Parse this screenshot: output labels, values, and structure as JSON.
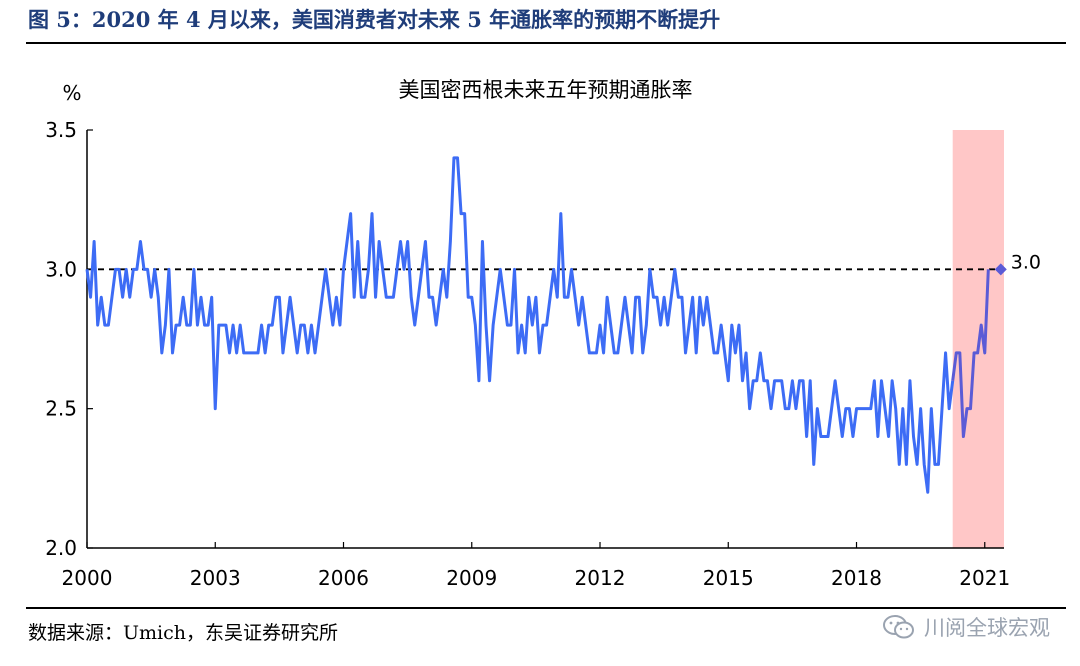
{
  "figure_title": "图 5：2020 年 4 月以来，美国消费者对未来 5 年通胀率的预期不断提升",
  "source": "数据来源：Umich，东吴证券研究所",
  "watermark": "川阅全球宏观",
  "watermark_icon": "wechat-icon",
  "colors": {
    "title": "#1f3d7a",
    "line": "#3d6cf5",
    "highlight": "#ffc7c7",
    "endpoint": "#5b5bd6",
    "reference": "#000000"
  },
  "chart_data": {
    "type": "line",
    "title": "美国密西根未来五年预期通胀率",
    "ylabel": "%",
    "xlabel": "",
    "ylim": [
      2.0,
      3.5
    ],
    "yticks": [
      "2.0",
      "2.5",
      "3.0",
      "3.5"
    ],
    "xticks": [
      "2000",
      "2003",
      "2006",
      "2009",
      "2012",
      "2015",
      "2018",
      "2021"
    ],
    "xlim": [
      2000.0,
      2021.45
    ],
    "reference_line": {
      "y": 3.0,
      "style": "dashed"
    },
    "highlight_region": {
      "x_start": 2020.25,
      "x_end": 2021.45
    },
    "endpoint_label": {
      "x": 2021.375,
      "y": 3.0,
      "text": "3.0"
    },
    "grid": false,
    "legend": "none",
    "series": [
      {
        "name": "",
        "x_start": 2000.0,
        "x_step_months": 1,
        "values": [
          3.0,
          2.9,
          3.1,
          2.8,
          2.9,
          2.8,
          2.8,
          2.9,
          3.0,
          3.0,
          2.9,
          3.0,
          2.9,
          3.0,
          3.0,
          3.1,
          3.0,
          3.0,
          2.9,
          3.0,
          2.9,
          2.7,
          2.8,
          3.0,
          2.7,
          2.8,
          2.8,
          2.9,
          2.8,
          2.8,
          3.0,
          2.8,
          2.9,
          2.8,
          2.8,
          2.9,
          2.5,
          2.8,
          2.8,
          2.8,
          2.7,
          2.8,
          2.7,
          2.8,
          2.7,
          2.7,
          2.7,
          2.7,
          2.7,
          2.8,
          2.7,
          2.8,
          2.8,
          2.9,
          2.9,
          2.7,
          2.8,
          2.9,
          2.8,
          2.7,
          2.8,
          2.8,
          2.7,
          2.8,
          2.7,
          2.8,
          2.9,
          3.0,
          2.9,
          2.8,
          2.9,
          2.8,
          3.0,
          3.1,
          3.2,
          2.9,
          3.1,
          2.9,
          2.9,
          3.0,
          3.2,
          2.9,
          3.1,
          3.0,
          2.9,
          2.9,
          2.9,
          3.0,
          3.1,
          3.0,
          3.1,
          2.9,
          2.8,
          2.9,
          3.0,
          3.1,
          2.9,
          2.9,
          2.8,
          2.9,
          3.0,
          2.9,
          3.1,
          3.4,
          3.4,
          3.2,
          3.2,
          2.9,
          2.9,
          2.8,
          2.6,
          3.1,
          2.8,
          2.6,
          2.8,
          2.9,
          3.0,
          2.9,
          2.8,
          2.8,
          3.0,
          2.7,
          2.8,
          2.7,
          2.9,
          2.8,
          2.9,
          2.7,
          2.8,
          2.8,
          2.9,
          3.0,
          2.9,
          3.2,
          2.9,
          2.9,
          3.0,
          2.9,
          2.8,
          2.9,
          2.8,
          2.7,
          2.7,
          2.7,
          2.8,
          2.7,
          2.9,
          2.8,
          2.7,
          2.7,
          2.8,
          2.9,
          2.8,
          2.7,
          2.9,
          2.9,
          2.7,
          2.8,
          3.0,
          2.9,
          2.9,
          2.8,
          2.9,
          2.8,
          2.9,
          3.0,
          2.9,
          2.9,
          2.7,
          2.8,
          2.9,
          2.7,
          2.9,
          2.8,
          2.9,
          2.8,
          2.7,
          2.7,
          2.8,
          2.7,
          2.6,
          2.8,
          2.7,
          2.8,
          2.6,
          2.7,
          2.5,
          2.6,
          2.6,
          2.7,
          2.6,
          2.6,
          2.5,
          2.6,
          2.6,
          2.6,
          2.5,
          2.5,
          2.6,
          2.5,
          2.6,
          2.6,
          2.4,
          2.6,
          2.3,
          2.5,
          2.4,
          2.4,
          2.4,
          2.5,
          2.6,
          2.5,
          2.4,
          2.5,
          2.5,
          2.4,
          2.5,
          2.5,
          2.5,
          2.5,
          2.5,
          2.6,
          2.4,
          2.6,
          2.5,
          2.4,
          2.6,
          2.5,
          2.3,
          2.5,
          2.3,
          2.6,
          2.4,
          2.3,
          2.5,
          2.3,
          2.2,
          2.5,
          2.3,
          2.3,
          2.5,
          2.7,
          2.5,
          2.6,
          2.7,
          2.7,
          2.4,
          2.5,
          2.5,
          2.7,
          2.7,
          2.8,
          2.7,
          3.0
        ]
      }
    ]
  }
}
